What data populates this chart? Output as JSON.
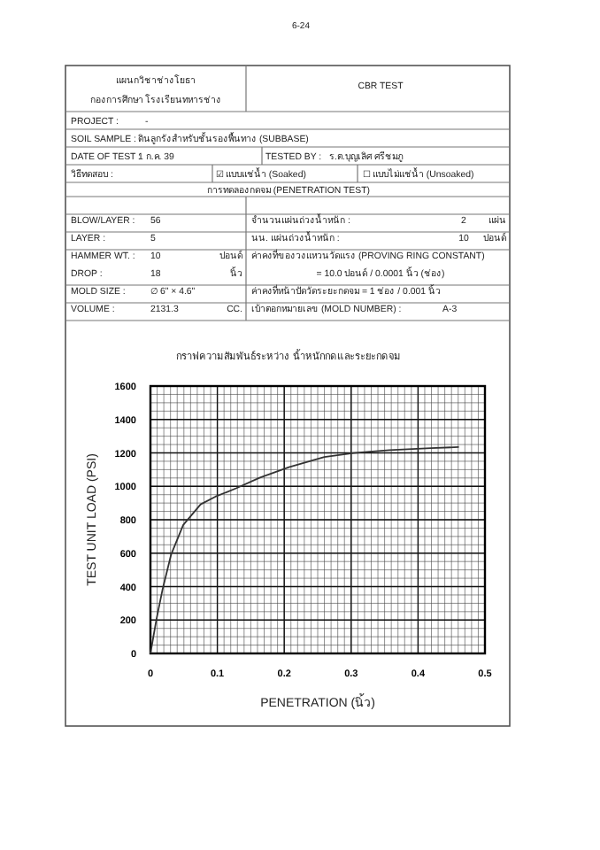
{
  "chart_data": {
    "type": "line",
    "title": "กราฟความสัมพันธ์ระหว่าง น้ำหนักกดและระยะกดจม",
    "xlabel": "PENETRATION (นิ้ว)",
    "ylabel": "TEST UNIT LOAD (PSI)",
    "x": [
      0,
      0.009,
      0.018,
      0.031,
      0.049,
      0.075,
      0.097,
      0.128,
      0.163,
      0.207,
      0.26,
      0.304,
      0.357,
      0.419,
      0.461
    ],
    "series": [
      {
        "color": "#333333",
        "values": [
          0,
          205,
          381,
          593,
          769,
          892,
          938,
          988,
          1051,
          1115,
          1175,
          1199,
          1217,
          1228,
          1235
        ]
      }
    ],
    "xlim": [
      0,
      0.5
    ],
    "xticks": [
      0,
      0.1,
      0.2,
      0.3,
      0.4,
      0.5
    ],
    "ylim": [
      0,
      1600
    ],
    "yticks": [
      0,
      200,
      400,
      600,
      800,
      1000,
      1200,
      1400,
      1600
    ],
    "grid": true,
    "marker": "none",
    "line_style": "solid",
    "annotations": [
      "6-24",
      "แผนกวิชาช่างโยธา",
      "กองการศึกษา โรงเรียนทหารช่าง",
      "CBR TEST",
      "PROJECT :",
      "-",
      "SOIL SAMPLE :",
      "ดินลูกรังสำหรับชั้นรองพื้นทาง (SUBBASE)",
      "DATE OF TEST :",
      "1 ก.ค. 39",
      "TESTED BY :",
      "ร.ต.บุญเลิศ ศรีชมภู",
      "วิธีทดสอบ :",
      "☑ แบบแช่น้ำ (Soaked)",
      "☐ แบบไม่แช่น้ำ (Unsoaked)",
      "การทดลองกดจม (PENETRATION TEST)",
      "BLOW/LAYER :",
      "56",
      "จำนวนแผ่นถ่วงน้ำหนัก :",
      "2",
      "แผ่น",
      "LAYER :",
      "5",
      "นน. แผ่นถ่วงน้ำหนัก :",
      "10",
      "ปอนด์",
      "HAMMER WT. :",
      "10",
      "ปอนด์",
      "ค่าคงที่ของวงแหวนวัดแรง (PROVING RING CONSTANT)",
      "DROP :",
      "18",
      "นิ้ว",
      "= 10.0 ปอนด์ / 0.0001 นิ้ว (ช่อง)",
      "MOLD SIZE :",
      "∅ 6\" × 4.6\"",
      "ค่าคงที่หน้าปัดวัดระยะกดจม = 1 ช่อง / 0.001 นิ้ว",
      "VOLUME :",
      "2131.3",
      "CC.",
      "เบ้าตอกหมายเลข (MOLD NUMBER) :",
      "A-3"
    ]
  }
}
